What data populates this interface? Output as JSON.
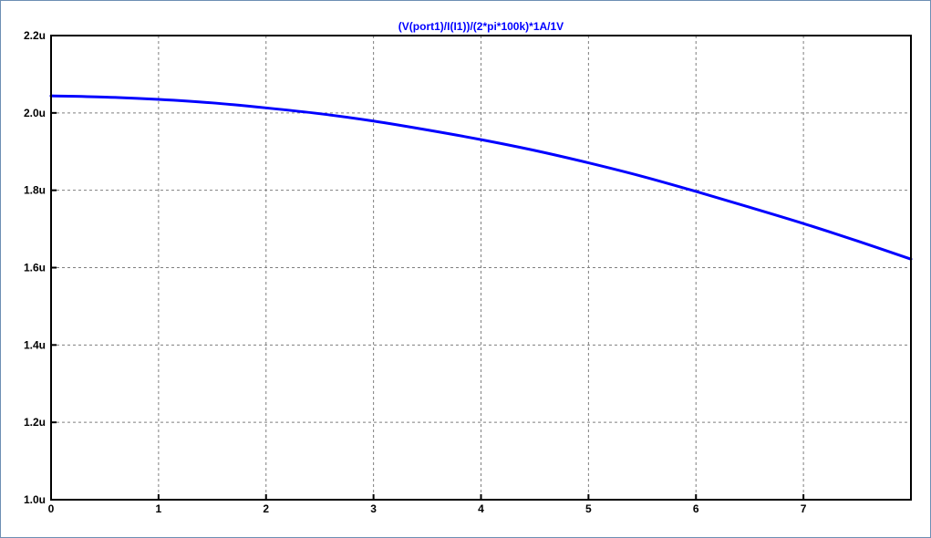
{
  "chart_data": {
    "type": "line",
    "title": "(V(port1)/I(I1))/(2*pi*100k)*1A/1V",
    "xlabel": "",
    "ylabel": "",
    "xlim": [
      0,
      8
    ],
    "ylim": [
      1.0,
      2.2
    ],
    "x_ticks": [
      0,
      1,
      2,
      3,
      4,
      5,
      6,
      7
    ],
    "x_tick_labels": [
      "0",
      "1",
      "2",
      "3",
      "4",
      "5",
      "6",
      "7"
    ],
    "y_ticks": [
      1.0,
      1.2,
      1.4,
      1.6,
      1.8,
      2.0,
      2.2
    ],
    "y_tick_labels": [
      "1.0u",
      "1.2u",
      "1.4u",
      "1.6u",
      "1.8u",
      "2.0u",
      "2.2u"
    ],
    "grid": true,
    "series": [
      {
        "name": "(V(port1)/I(I1))/(2*pi*100k)*1A/1V",
        "color": "#0000ff",
        "x": [
          0,
          0.5,
          1,
          1.5,
          2,
          2.5,
          3,
          3.5,
          4,
          4.5,
          5,
          5.5,
          6,
          6.5,
          7,
          7.5,
          8
        ],
        "y": [
          2.044,
          2.041,
          2.035,
          2.026,
          2.013,
          1.998,
          1.979,
          1.956,
          1.931,
          1.903,
          1.871,
          1.836,
          1.797,
          1.756,
          1.714,
          1.669,
          1.622
        ]
      }
    ],
    "colors": {
      "axis": "#000000",
      "grid": "#7f7f7f",
      "title": "#0000ff",
      "trace": "#0000ff",
      "window_border": "#6d8fb3"
    }
  }
}
